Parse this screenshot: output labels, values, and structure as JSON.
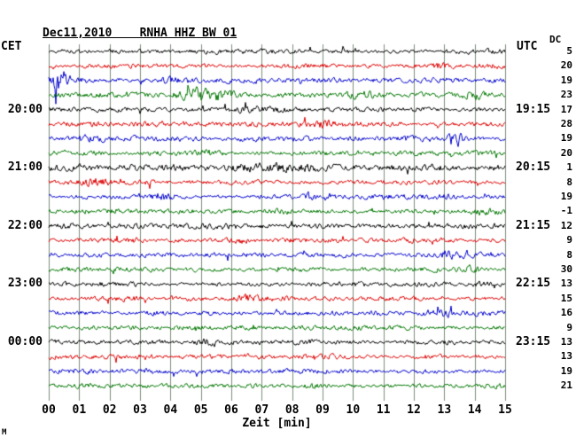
{
  "header": {
    "title": "Dec11,2010    RNHA HHZ BW 01"
  },
  "axes": {
    "left_label": "CET",
    "right_label": "UTC",
    "dc_header": "DC",
    "xlabel": "Zeit [min]",
    "x_ticks": [
      "00",
      "01",
      "02",
      "03",
      "04",
      "05",
      "06",
      "07",
      "08",
      "09",
      "10",
      "11",
      "12",
      "13",
      "14",
      "15"
    ]
  },
  "corner_mark": "M",
  "colors": {
    "black": "#000000",
    "red": "#dd0000",
    "blue": "#0000cc",
    "green": "#007700",
    "grid": "#7c8c7c",
    "text": "#000000",
    "background": "#ffffff"
  },
  "chart_data": {
    "type": "line",
    "subtype": "helicorder-seismogram",
    "title": "Dec11,2010 RNHA HHZ BW 01",
    "date": "Dec11,2010",
    "station_line": "RNHA HHZ BW 01",
    "xlabel": "Zeit [min]",
    "x_range": [
      0,
      15
    ],
    "minutes_per_line": 15,
    "left_time_axis": "CET",
    "right_time_axis": "UTC",
    "waveform_note": "traces are band-limited random seismic noise; events = localized bursts (minute position, relative amplitude, width in minutes)",
    "traces": [
      {
        "color": "black",
        "cet": "",
        "utc": "",
        "dc": 5,
        "seed": 101,
        "amp": 1.0,
        "events": []
      },
      {
        "color": "red",
        "cet": "",
        "utc": "",
        "dc": 20,
        "seed": 102,
        "amp": 1.0,
        "events": [
          {
            "min": 12.9,
            "amp": 1.2,
            "w": 0.3
          }
        ]
      },
      {
        "color": "blue",
        "cet": "",
        "utc": "",
        "dc": 19,
        "seed": 103,
        "amp": 1.1,
        "events": [
          {
            "min": 0.35,
            "amp": 4.0,
            "w": 0.22
          },
          {
            "min": 4.1,
            "amp": 1.0,
            "w": 0.4
          }
        ]
      },
      {
        "color": "green",
        "cet": "",
        "utc": "",
        "dc": 23,
        "seed": 104,
        "amp": 1.1,
        "events": [
          {
            "min": 4.9,
            "amp": 2.2,
            "w": 0.45
          },
          {
            "min": 5.7,
            "amp": 1.5,
            "w": 0.3
          },
          {
            "min": 10.4,
            "amp": 1.3,
            "w": 0.3
          },
          {
            "min": 13.9,
            "amp": 1.1,
            "w": 0.3
          }
        ]
      },
      {
        "color": "black",
        "cet": "20:00",
        "utc": "19:15",
        "dc": 17,
        "seed": 105,
        "amp": 1.0,
        "events": [
          {
            "min": 7.1,
            "amp": 0.8,
            "w": 0.6
          }
        ]
      },
      {
        "color": "red",
        "cet": "",
        "utc": "",
        "dc": 28,
        "seed": 106,
        "amp": 1.0,
        "events": [
          {
            "min": 9.2,
            "amp": 1.0,
            "w": 0.5
          }
        ]
      },
      {
        "color": "blue",
        "cet": "",
        "utc": "",
        "dc": 19,
        "seed": 107,
        "amp": 1.0,
        "events": [
          {
            "min": 1.3,
            "amp": 1.0,
            "w": 0.3
          },
          {
            "min": 13.35,
            "amp": 4.5,
            "w": 0.18
          }
        ]
      },
      {
        "color": "green",
        "cet": "",
        "utc": "",
        "dc": 20,
        "seed": 108,
        "amp": 1.0,
        "events": [
          {
            "min": 5.2,
            "amp": 1.2,
            "w": 0.25
          }
        ]
      },
      {
        "color": "black",
        "cet": "21:00",
        "utc": "20:15",
        "dc": 1,
        "seed": 109,
        "amp": 1.35,
        "events": [
          {
            "min": 7.5,
            "amp": 0.8,
            "w": 1.2
          }
        ]
      },
      {
        "color": "red",
        "cet": "",
        "utc": "",
        "dc": 8,
        "seed": 110,
        "amp": 1.0,
        "events": [
          {
            "min": 1.6,
            "amp": 1.1,
            "w": 0.35
          }
        ]
      },
      {
        "color": "blue",
        "cet": "",
        "utc": "",
        "dc": 19,
        "seed": 111,
        "amp": 1.0,
        "events": [
          {
            "min": 3.6,
            "amp": 1.6,
            "w": 0.25
          },
          {
            "min": 8.6,
            "amp": 1.3,
            "w": 0.15
          }
        ]
      },
      {
        "color": "green",
        "cet": "",
        "utc": "",
        "dc": -1,
        "seed": 112,
        "amp": 1.0,
        "events": [
          {
            "min": 14.2,
            "amp": 1.2,
            "w": 0.3
          }
        ]
      },
      {
        "color": "black",
        "cet": "22:00",
        "utc": "21:15",
        "dc": 12,
        "seed": 113,
        "amp": 1.1,
        "events": []
      },
      {
        "color": "red",
        "cet": "",
        "utc": "",
        "dc": 9,
        "seed": 114,
        "amp": 1.0,
        "events": [
          {
            "min": 6.3,
            "amp": 1.0,
            "w": 0.3
          }
        ]
      },
      {
        "color": "blue",
        "cet": "",
        "utc": "",
        "dc": 8,
        "seed": 115,
        "amp": 1.0,
        "events": [
          {
            "min": 13.2,
            "amp": 1.4,
            "w": 0.3
          }
        ]
      },
      {
        "color": "green",
        "cet": "",
        "utc": "",
        "dc": 30,
        "seed": 116,
        "amp": 1.0,
        "events": [
          {
            "min": 13.9,
            "amp": 1.5,
            "w": 0.25
          }
        ]
      },
      {
        "color": "black",
        "cet": "23:00",
        "utc": "22:15",
        "dc": 13,
        "seed": 117,
        "amp": 1.0,
        "events": []
      },
      {
        "color": "red",
        "cet": "",
        "utc": "",
        "dc": 15,
        "seed": 118,
        "amp": 1.0,
        "events": [
          {
            "min": 6.5,
            "amp": 1.3,
            "w": 0.3
          }
        ]
      },
      {
        "color": "blue",
        "cet": "",
        "utc": "",
        "dc": 16,
        "seed": 119,
        "amp": 1.0,
        "events": [
          {
            "min": 12.9,
            "amp": 1.4,
            "w": 0.3
          }
        ]
      },
      {
        "color": "green",
        "cet": "",
        "utc": "",
        "dc": 9,
        "seed": 120,
        "amp": 1.0,
        "events": []
      },
      {
        "color": "black",
        "cet": "00:00",
        "utc": "23:15",
        "dc": 13,
        "seed": 121,
        "amp": 1.0,
        "events": [
          {
            "min": 5.3,
            "amp": 1.5,
            "w": 0.25
          }
        ]
      },
      {
        "color": "red",
        "cet": "",
        "utc": "",
        "dc": 13,
        "seed": 122,
        "amp": 1.0,
        "events": []
      },
      {
        "color": "blue",
        "cet": "",
        "utc": "",
        "dc": 19,
        "seed": 123,
        "amp": 1.0,
        "events": []
      },
      {
        "color": "green",
        "cet": "",
        "utc": "",
        "dc": 21,
        "seed": 124,
        "amp": 1.0,
        "events": []
      }
    ]
  }
}
